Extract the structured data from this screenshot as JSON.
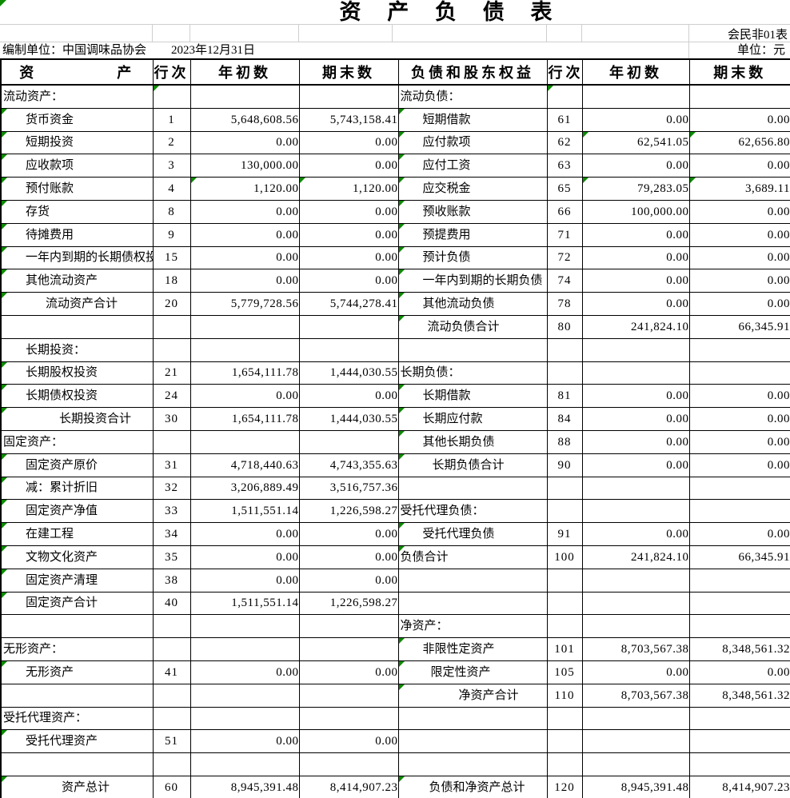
{
  "meta": {
    "title": "资 产 负 债 表",
    "form_code": "会民非01表",
    "prepared_by": "编制单位：中国调味品协会",
    "report_date": "2023年12月31日",
    "unit_label": "单位：元"
  },
  "headers": {
    "asset_left": "资",
    "asset_right": "产",
    "line_no": "行次",
    "begin_of_year": "年初数",
    "end_of_period": "期末数",
    "liability": "负债和股东权益"
  },
  "rows": [
    {
      "l": [
        "流动资产：",
        2,
        "",
        "",
        ""
      ],
      "r": [
        "流动负债：",
        2,
        "",
        "",
        ""
      ]
    },
    {
      "l": [
        "货币资金",
        30,
        "1",
        "5,648,608.56",
        "5,743,158.41"
      ],
      "r": [
        "短期借款",
        30,
        "61",
        "0.00",
        "0.00"
      ]
    },
    {
      "l": [
        "短期投资",
        30,
        "2",
        "0.00",
        "0.00"
      ],
      "r": [
        "应付款项",
        30,
        "62",
        "62,541.05",
        "62,656.80",
        "be"
      ]
    },
    {
      "l": [
        "应收款项",
        30,
        "3",
        "130,000.00",
        "0.00"
      ],
      "r": [
        "应付工资",
        30,
        "63",
        "0.00",
        "0.00"
      ]
    },
    {
      "l": [
        "预付账款",
        30,
        "4",
        "1,120.00",
        "1,120.00",
        "be"
      ],
      "r": [
        "应交税金",
        30,
        "65",
        "79,283.05",
        "3,689.11",
        "be"
      ]
    },
    {
      "l": [
        "存货",
        30,
        "8",
        "0.00",
        "0.00"
      ],
      "r": [
        "预收账款",
        30,
        "66",
        "100,000.00",
        "0.00"
      ]
    },
    {
      "l": [
        "待摊费用",
        30,
        "9",
        "0.00",
        "0.00"
      ],
      "r": [
        "预提费用",
        30,
        "71",
        "0.00",
        "0.00"
      ]
    },
    {
      "l": [
        "一年内到期的长期债权投资",
        30,
        "15",
        "0.00",
        "0.00"
      ],
      "r": [
        "预计负债",
        30,
        "72",
        "0.00",
        "0.00"
      ]
    },
    {
      "l": [
        "其他流动资产",
        30,
        "18",
        "0.00",
        "0.00"
      ],
      "r": [
        "一年内到期的长期负债",
        30,
        "74",
        "0.00",
        "0.00"
      ]
    },
    {
      "l": [
        "流动资产合计",
        55,
        "20",
        "5,779,728.56",
        "5,744,278.41"
      ],
      "r": [
        "其他流动负债",
        30,
        "78",
        "0.00",
        "0.00"
      ]
    },
    {
      "l": [
        "",
        2,
        "",
        "",
        ""
      ],
      "r": [
        "流动负债合计",
        36,
        "80",
        "241,824.10",
        "66,345.91"
      ]
    },
    {
      "l": [
        "长期投资：",
        30,
        "",
        "",
        ""
      ],
      "r": [
        "",
        2,
        "",
        "",
        ""
      ]
    },
    {
      "l": [
        "长期股权投资",
        30,
        "21",
        "1,654,111.78",
        "1,444,030.55"
      ],
      "r": [
        "长期负债：",
        2,
        "",
        "",
        ""
      ]
    },
    {
      "l": [
        "长期债权投资",
        30,
        "24",
        "0.00",
        "0.00"
      ],
      "r": [
        "长期借款",
        30,
        "81",
        "0.00",
        "0.00"
      ]
    },
    {
      "l": [
        "长期投资合计",
        72,
        "30",
        "1,654,111.78",
        "1,444,030.55"
      ],
      "r": [
        "长期应付款",
        30,
        "84",
        "0.00",
        "0.00"
      ]
    },
    {
      "l": [
        "固定资产：",
        2,
        "",
        "",
        ""
      ],
      "r": [
        "其他长期负债",
        30,
        "88",
        "0.00",
        "0.00"
      ]
    },
    {
      "l": [
        "固定资产原价",
        30,
        "31",
        "4,718,440.63",
        "4,743,355.63"
      ],
      "r": [
        "长期负债合计",
        42,
        "90",
        "0.00",
        "0.00"
      ]
    },
    {
      "l": [
        "减：累计折旧",
        30,
        "32",
        "3,206,889.49",
        "3,516,757.36"
      ],
      "r": [
        "",
        2,
        "",
        "",
        ""
      ]
    },
    {
      "l": [
        "固定资产净值",
        30,
        "33",
        "1,511,551.14",
        "1,226,598.27"
      ],
      "r": [
        "受托代理负债：",
        2,
        "",
        "",
        ""
      ]
    },
    {
      "l": [
        "在建工程",
        30,
        "34",
        "0.00",
        "0.00"
      ],
      "r": [
        "受托代理负债",
        30,
        "91",
        "0.00",
        "0.00"
      ]
    },
    {
      "l": [
        "文物文化资产",
        30,
        "35",
        "0.00",
        "0.00"
      ],
      "r": [
        "负债合计",
        2,
        "100",
        "241,824.10",
        "66,345.91"
      ]
    },
    {
      "l": [
        "固定资产清理",
        30,
        "38",
        "0.00",
        "0.00"
      ],
      "r": [
        "",
        2,
        "",
        "",
        ""
      ]
    },
    {
      "l": [
        "固定资产合计",
        30,
        "40",
        "1,511,551.14",
        "1,226,598.27"
      ],
      "r": [
        "",
        2,
        "",
        "",
        ""
      ]
    },
    {
      "l": [
        "",
        2,
        "",
        "",
        ""
      ],
      "r": [
        "净资产：",
        2,
        "",
        "",
        ""
      ]
    },
    {
      "l": [
        "无形资产：",
        2,
        "",
        "",
        ""
      ],
      "r": [
        "非限性定资产",
        30,
        "101",
        "8,703,567.38",
        "8,348,561.32"
      ]
    },
    {
      "l": [
        "无形资产",
        30,
        "41",
        "0.00",
        "0.00"
      ],
      "r": [
        "限定性资产",
        40,
        "105",
        "0.00",
        "0.00"
      ]
    },
    {
      "l": [
        "",
        2,
        "",
        "",
        ""
      ],
      "r": [
        "净资产合计",
        75,
        "110",
        "8,703,567.38",
        "8,348,561.32"
      ]
    },
    {
      "l": [
        "受托代理资产：",
        2,
        "",
        "",
        ""
      ],
      "r": [
        "",
        2,
        "",
        "",
        ""
      ]
    },
    {
      "l": [
        "受托代理资产",
        30,
        "51",
        "0.00",
        "0.00"
      ],
      "r": [
        "",
        2,
        "",
        "",
        ""
      ]
    },
    {
      "l": [
        "",
        2,
        "",
        "",
        ""
      ],
      "r": [
        "",
        2,
        "",
        "",
        ""
      ]
    },
    {
      "l": [
        "资产总计",
        75,
        "60",
        "8,945,391.48",
        "8,414,907.23"
      ],
      "r": [
        "负债和净资产总计",
        38,
        "120",
        "8,945,391.48",
        "8,414,907.23"
      ]
    }
  ],
  "colors": {
    "error_triangle_green": "#0c8a00",
    "grid_black": "#000000",
    "faint_grid_gray": "#cfcfcf"
  }
}
